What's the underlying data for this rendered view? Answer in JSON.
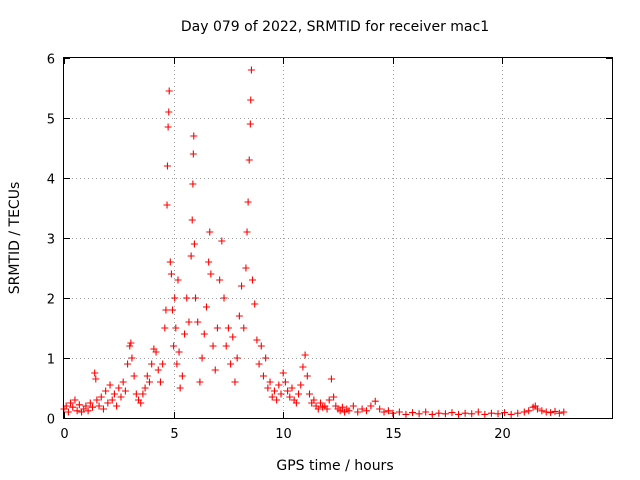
{
  "chart_data": {
    "type": "scatter",
    "title": "Day 079 of 2022, SRMTID for receiver mac1",
    "xlabel": "GPS time / hours",
    "ylabel": "SRMTID / TECUs",
    "xlim": [
      0,
      25
    ],
    "ylim": [
      0,
      6
    ],
    "xticks": [
      0,
      5,
      10,
      15,
      20
    ],
    "xtick_labels": [
      "0",
      "5",
      "10",
      "15",
      "20"
    ],
    "yticks": [
      0,
      1,
      2,
      3,
      4,
      5,
      6
    ],
    "ytick_labels": [
      "0",
      "1",
      "2",
      "3",
      "4",
      "5",
      "6"
    ],
    "grid": true,
    "marker": "plus",
    "color": "#ff0000",
    "series": [
      {
        "name": "SRMTID",
        "points": [
          [
            0.0,
            0.15
          ],
          [
            0.1,
            0.2
          ],
          [
            0.2,
            0.1
          ],
          [
            0.3,
            0.25
          ],
          [
            0.4,
            0.18
          ],
          [
            0.5,
            0.3
          ],
          [
            0.6,
            0.12
          ],
          [
            0.7,
            0.22
          ],
          [
            0.8,
            0.1
          ],
          [
            0.9,
            0.15
          ],
          [
            1.0,
            0.2
          ],
          [
            1.1,
            0.12
          ],
          [
            1.2,
            0.25
          ],
          [
            1.3,
            0.18
          ],
          [
            1.4,
            0.75
          ],
          [
            1.45,
            0.65
          ],
          [
            1.5,
            0.3
          ],
          [
            1.6,
            0.2
          ],
          [
            1.7,
            0.35
          ],
          [
            1.8,
            0.15
          ],
          [
            1.9,
            0.45
          ],
          [
            2.0,
            0.25
          ],
          [
            2.1,
            0.55
          ],
          [
            2.2,
            0.3
          ],
          [
            2.3,
            0.4
          ],
          [
            2.4,
            0.2
          ],
          [
            2.5,
            0.5
          ],
          [
            2.6,
            0.35
          ],
          [
            2.7,
            0.6
          ],
          [
            2.8,
            0.45
          ],
          [
            2.9,
            0.9
          ],
          [
            3.0,
            1.2
          ],
          [
            3.05,
            1.25
          ],
          [
            3.1,
            1.0
          ],
          [
            3.2,
            0.7
          ],
          [
            3.3,
            0.4
          ],
          [
            3.4,
            0.3
          ],
          [
            3.5,
            0.25
          ],
          [
            3.6,
            0.4
          ],
          [
            3.7,
            0.5
          ],
          [
            3.8,
            0.7
          ],
          [
            3.9,
            0.6
          ],
          [
            4.0,
            0.9
          ],
          [
            4.1,
            1.15
          ],
          [
            4.2,
            1.1
          ],
          [
            4.3,
            0.8
          ],
          [
            4.4,
            0.6
          ],
          [
            4.5,
            0.9
          ],
          [
            4.6,
            1.5
          ],
          [
            4.65,
            1.8
          ],
          [
            4.7,
            3.55
          ],
          [
            4.72,
            4.2
          ],
          [
            4.75,
            4.85
          ],
          [
            4.78,
            5.1
          ],
          [
            4.8,
            5.45
          ],
          [
            4.85,
            2.6
          ],
          [
            4.9,
            2.4
          ],
          [
            4.95,
            1.8
          ],
          [
            5.0,
            1.2
          ],
          [
            5.05,
            2.0
          ],
          [
            5.1,
            1.5
          ],
          [
            5.15,
            0.9
          ],
          [
            5.2,
            2.3
          ],
          [
            5.25,
            1.1
          ],
          [
            5.3,
            0.5
          ],
          [
            5.4,
            0.7
          ],
          [
            5.5,
            1.4
          ],
          [
            5.6,
            2.0
          ],
          [
            5.7,
            1.6
          ],
          [
            5.8,
            2.7
          ],
          [
            5.85,
            3.3
          ],
          [
            5.88,
            3.9
          ],
          [
            5.9,
            4.4
          ],
          [
            5.92,
            4.7
          ],
          [
            5.95,
            2.9
          ],
          [
            6.0,
            2.0
          ],
          [
            6.1,
            1.6
          ],
          [
            6.2,
            0.6
          ],
          [
            6.3,
            1.0
          ],
          [
            6.4,
            1.4
          ],
          [
            6.5,
            1.85
          ],
          [
            6.6,
            2.6
          ],
          [
            6.65,
            3.1
          ],
          [
            6.7,
            2.4
          ],
          [
            6.8,
            1.2
          ],
          [
            6.9,
            0.8
          ],
          [
            7.0,
            1.5
          ],
          [
            7.1,
            2.3
          ],
          [
            7.2,
            2.95
          ],
          [
            7.3,
            2.0
          ],
          [
            7.4,
            1.2
          ],
          [
            7.5,
            1.5
          ],
          [
            7.6,
            0.9
          ],
          [
            7.7,
            1.35
          ],
          [
            7.8,
            0.6
          ],
          [
            7.9,
            1.0
          ],
          [
            8.0,
            1.7
          ],
          [
            8.1,
            2.2
          ],
          [
            8.2,
            1.5
          ],
          [
            8.3,
            2.5
          ],
          [
            8.35,
            3.1
          ],
          [
            8.4,
            3.6
          ],
          [
            8.45,
            4.3
          ],
          [
            8.5,
            4.9
          ],
          [
            8.52,
            5.3
          ],
          [
            8.55,
            5.8
          ],
          [
            8.6,
            2.3
          ],
          [
            8.7,
            1.9
          ],
          [
            8.8,
            1.3
          ],
          [
            8.9,
            0.9
          ],
          [
            9.0,
            1.2
          ],
          [
            9.1,
            0.7
          ],
          [
            9.2,
            1.0
          ],
          [
            9.3,
            0.5
          ],
          [
            9.4,
            0.6
          ],
          [
            9.5,
            0.35
          ],
          [
            9.6,
            0.45
          ],
          [
            9.7,
            0.3
          ],
          [
            9.8,
            0.55
          ],
          [
            9.9,
            0.4
          ],
          [
            10.0,
            0.75
          ],
          [
            10.1,
            0.6
          ],
          [
            10.2,
            0.45
          ],
          [
            10.3,
            0.35
          ],
          [
            10.4,
            0.5
          ],
          [
            10.5,
            0.3
          ],
          [
            10.6,
            0.25
          ],
          [
            10.7,
            0.4
          ],
          [
            10.8,
            0.55
          ],
          [
            10.9,
            0.85
          ],
          [
            11.0,
            1.05
          ],
          [
            11.1,
            0.7
          ],
          [
            11.2,
            0.4
          ],
          [
            11.3,
            0.25
          ],
          [
            11.4,
            0.3
          ],
          [
            11.5,
            0.2
          ],
          [
            11.6,
            0.15
          ],
          [
            11.7,
            0.25
          ],
          [
            11.8,
            0.18
          ],
          [
            11.9,
            0.2
          ],
          [
            12.0,
            0.15
          ],
          [
            12.1,
            0.3
          ],
          [
            12.2,
            0.65
          ],
          [
            12.3,
            0.35
          ],
          [
            12.4,
            0.2
          ],
          [
            12.5,
            0.15
          ],
          [
            12.6,
            0.12
          ],
          [
            12.7,
            0.18
          ],
          [
            12.8,
            0.1
          ],
          [
            12.9,
            0.15
          ],
          [
            13.0,
            0.12
          ],
          [
            13.2,
            0.2
          ],
          [
            13.4,
            0.1
          ],
          [
            13.6,
            0.15
          ],
          [
            13.8,
            0.12
          ],
          [
            14.0,
            0.2
          ],
          [
            14.2,
            0.28
          ],
          [
            14.4,
            0.15
          ],
          [
            14.6,
            0.1
          ],
          [
            14.8,
            0.12
          ],
          [
            15.0,
            0.08
          ],
          [
            15.3,
            0.1
          ],
          [
            15.6,
            0.06
          ],
          [
            15.9,
            0.09
          ],
          [
            16.2,
            0.07
          ],
          [
            16.5,
            0.1
          ],
          [
            16.8,
            0.06
          ],
          [
            17.1,
            0.08
          ],
          [
            17.4,
            0.07
          ],
          [
            17.7,
            0.09
          ],
          [
            18.0,
            0.06
          ],
          [
            18.3,
            0.08
          ],
          [
            18.6,
            0.07
          ],
          [
            18.9,
            0.1
          ],
          [
            19.2,
            0.06
          ],
          [
            19.5,
            0.08
          ],
          [
            19.8,
            0.07
          ],
          [
            20.1,
            0.09
          ],
          [
            20.4,
            0.06
          ],
          [
            20.7,
            0.08
          ],
          [
            21.0,
            0.1
          ],
          [
            21.2,
            0.12
          ],
          [
            21.4,
            0.18
          ],
          [
            21.5,
            0.2
          ],
          [
            21.6,
            0.15
          ],
          [
            21.8,
            0.12
          ],
          [
            22.0,
            0.1
          ],
          [
            22.2,
            0.09
          ],
          [
            22.4,
            0.11
          ],
          [
            22.6,
            0.08
          ],
          [
            22.8,
            0.1
          ]
        ]
      }
    ]
  }
}
